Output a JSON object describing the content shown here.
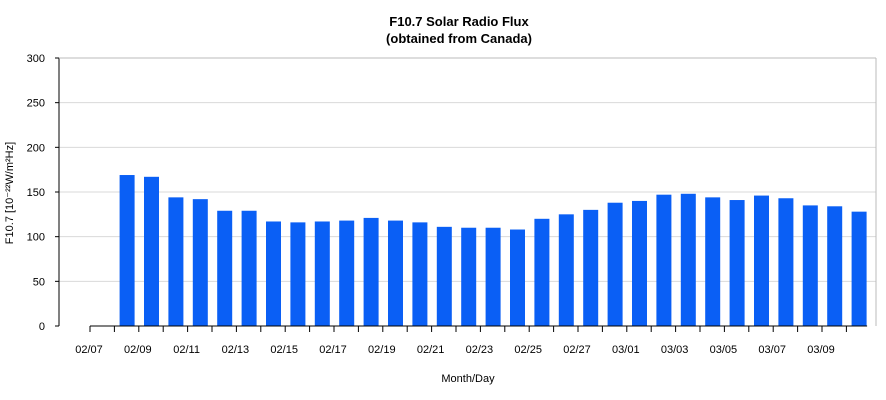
{
  "chart_data": {
    "type": "bar",
    "title": "F10.7 Solar Radio Flux",
    "subtitle": "(obtained from Canada)",
    "xlabel": "Month/Day",
    "ylabel": "F10.7 [10⁻²²W/m²Hz]",
    "ylim": [
      0,
      300
    ],
    "yticks": [
      0,
      50,
      100,
      150,
      200,
      250,
      300
    ],
    "grid": true,
    "bar_color": "#0a5ff5",
    "categories": [
      "02/07",
      "02/08",
      "02/09",
      "02/10",
      "02/11",
      "02/12",
      "02/13",
      "02/14",
      "02/15",
      "02/16",
      "02/17",
      "02/18",
      "02/19",
      "02/20",
      "02/21",
      "02/22",
      "02/23",
      "02/24",
      "02/25",
      "02/26",
      "02/27",
      "02/28",
      "03/01",
      "03/02",
      "03/03",
      "03/04",
      "03/05",
      "03/06",
      "03/07",
      "03/08",
      "03/09",
      "03/10"
    ],
    "values": [
      null,
      169,
      167,
      144,
      142,
      129,
      129,
      117,
      116,
      117,
      118,
      121,
      118,
      116,
      111,
      110,
      110,
      108,
      120,
      125,
      130,
      138,
      140,
      147,
      148,
      144,
      141,
      146,
      143,
      135,
      134,
      128
    ],
    "xtick_labels": [
      "02/07",
      "02/09",
      "02/11",
      "02/13",
      "02/15",
      "02/17",
      "02/19",
      "02/21",
      "02/23",
      "02/25",
      "02/27",
      "03/01",
      "03/03",
      "03/05",
      "03/07",
      "03/09"
    ]
  }
}
